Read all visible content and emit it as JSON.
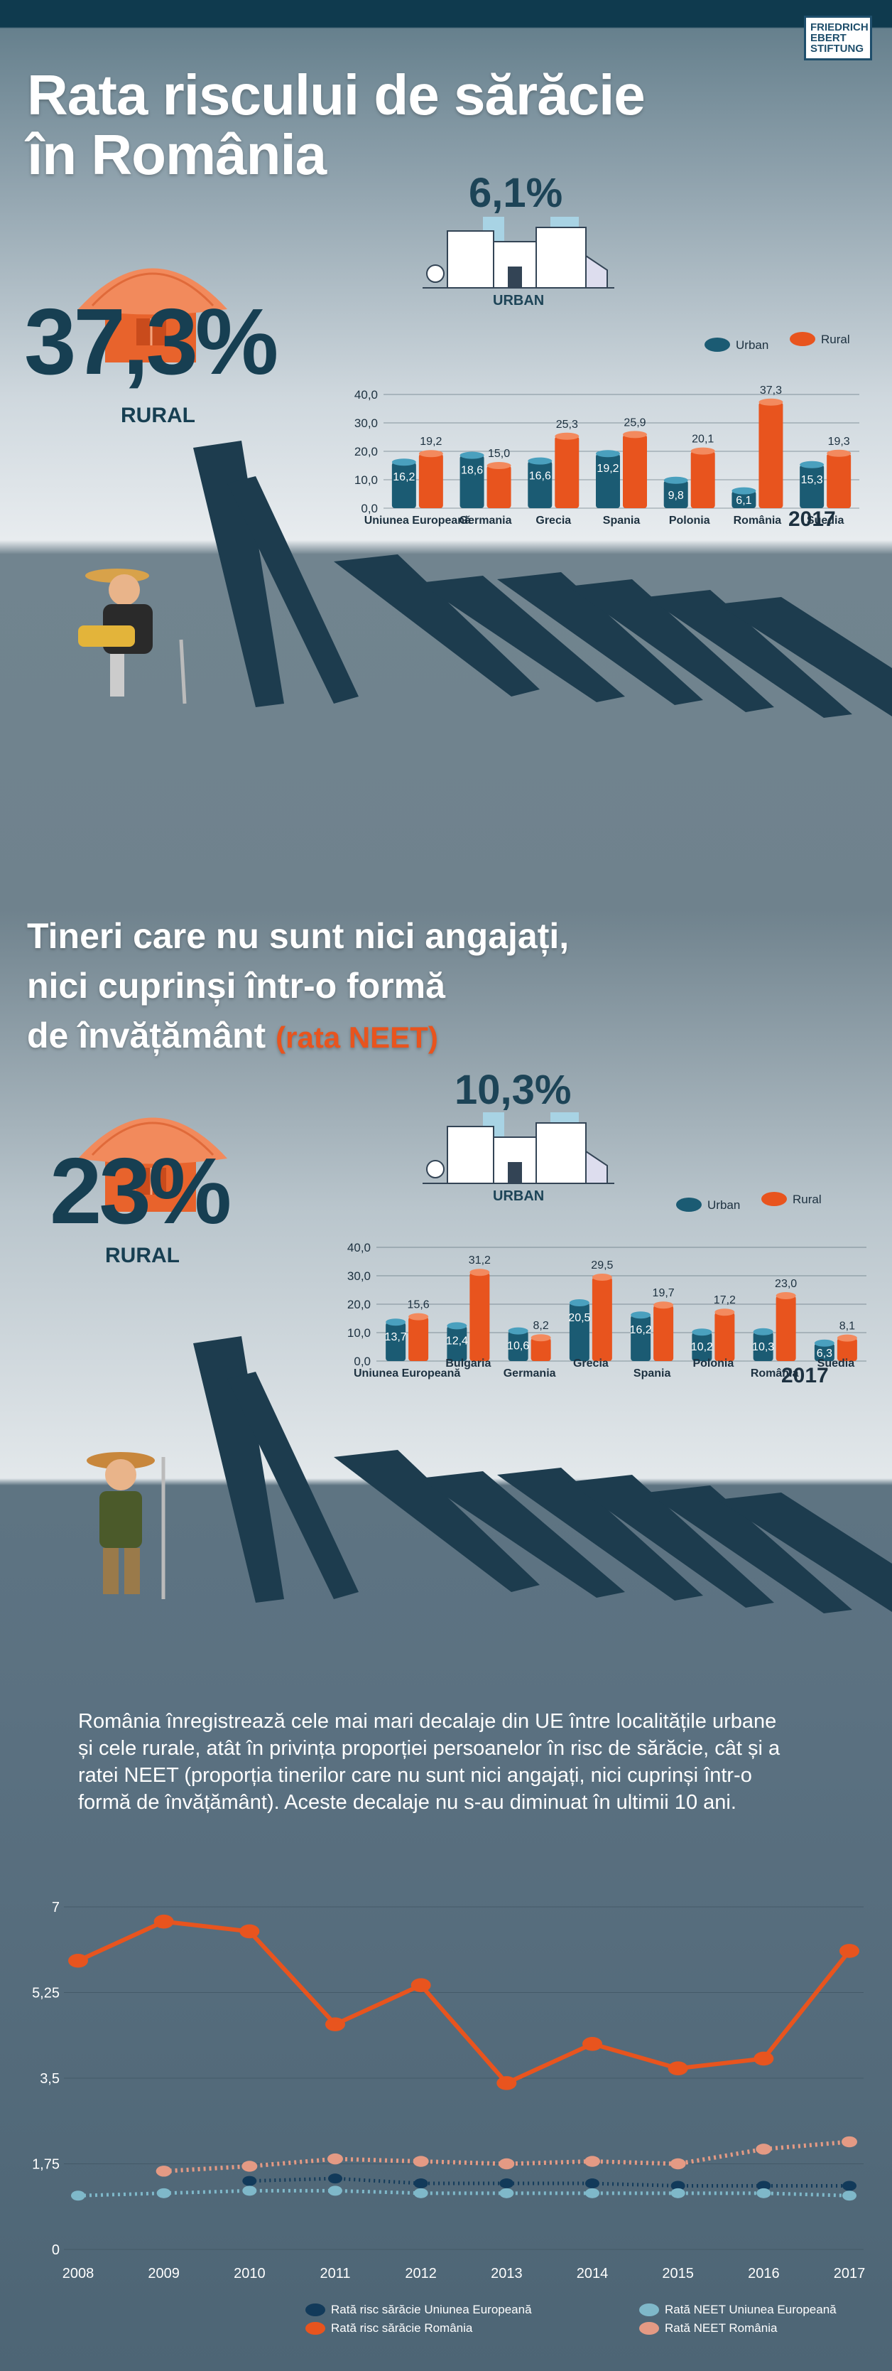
{
  "logo": {
    "line1": "FRIEDRICH",
    "line2": "EBERT",
    "line3": "STIFTUNG"
  },
  "section1": {
    "title_line1": "Rata riscului de sărăcie",
    "title_line2": "în România",
    "rural_value": "37,3%",
    "rural_label": "RURAL",
    "urban_value": "6,1%",
    "urban_label": "URBAN"
  },
  "section2": {
    "title_line1": "Tineri care nu sunt nici angajați,",
    "title_line2": "nici cuprinși într-o formă",
    "title_line3": "de învățământ",
    "title_highlight": "(rata NEET)",
    "rural_value": "23%",
    "rural_label": "RURAL",
    "urban_value": "10,3%",
    "urban_label": "URBAN"
  },
  "summary_text": "România înregistrează cele mai mari decalaje din UE între localitățile urbane și cele rurale, atât în privința proporției persoanelor în risc de sărăcie, cât și a ratei NEET (proporția tinerilor care nu sunt nici angajați, nici cuprinși într-o formă de învățământ). Aceste decalaje nu s-au diminuat în ultimii 10 ani.",
  "colors": {
    "urban": "#1b5b73",
    "rural": "#e8541e",
    "eu_neet": "#7fb8c9",
    "ro_neet": "#e49a84",
    "title_accent": "#e8541e"
  },
  "chart_data": [
    {
      "type": "bar",
      "year_label": "2017",
      "categories": [
        "Uniunea Europeană",
        "Germania",
        "Grecia",
        "Spania",
        "Polonia",
        "România",
        "Suedia"
      ],
      "series": [
        {
          "name": "Urban",
          "values": [
            16.2,
            18.6,
            16.6,
            19.2,
            9.8,
            6.1,
            15.3
          ]
        },
        {
          "name": "Rural",
          "values": [
            19.2,
            15.0,
            25.3,
            25.9,
            20.1,
            37.3,
            19.3
          ]
        }
      ],
      "value_labels": {
        "urban": [
          "16,2",
          "18,6",
          "16,6",
          "19,2",
          "9,8",
          "6,1",
          "15,3"
        ],
        "rural": [
          "19,2",
          "15,0",
          "25,3",
          "25,9",
          "20,1",
          "37,3",
          "19,3"
        ]
      },
      "yticks": [
        "0,0",
        "10,0",
        "20,0",
        "30,0",
        "40,0"
      ],
      "ylim": [
        0,
        40
      ],
      "legend": [
        "Urban",
        "Rural"
      ]
    },
    {
      "type": "bar",
      "year_label": "2017",
      "categories": [
        "Uniunea Europeană",
        "Bulgaria",
        "Germania",
        "Grecia",
        "Spania",
        "Polonia",
        "România",
        "Suedia"
      ],
      "series": [
        {
          "name": "Urban",
          "values": [
            13.7,
            12.4,
            10.6,
            20.5,
            16.2,
            10.2,
            10.3,
            6.3
          ]
        },
        {
          "name": "Rural",
          "values": [
            15.6,
            31.2,
            8.2,
            29.5,
            19.7,
            17.2,
            23.0,
            8.1
          ]
        }
      ],
      "value_labels": {
        "urban": [
          "13,7",
          "12,4",
          "10,6",
          "20,5",
          "16,2",
          "10,2",
          "10,3",
          "6,3"
        ],
        "rural": [
          "15,6",
          "31,2",
          "8,2",
          "29,5",
          "19,7",
          "17,2",
          "23,0",
          "8,1"
        ]
      },
      "yticks": [
        "0,0",
        "10,0",
        "20,0",
        "30,0",
        "40,0"
      ],
      "ylim": [
        0,
        40
      ],
      "legend": [
        "Urban",
        "Rural"
      ]
    },
    {
      "type": "line",
      "x": [
        "2008",
        "2009",
        "2010",
        "2011",
        "2012",
        "2013",
        "2014",
        "2015",
        "2016",
        "2017"
      ],
      "yticks": [
        "0",
        "1,75",
        "3,5",
        "5,25",
        "7"
      ],
      "ylim": [
        0,
        7
      ],
      "series": [
        {
          "name": "Rată risc sărăcie Uniunea Europeană",
          "values": [
            null,
            null,
            1.4,
            1.45,
            1.35,
            1.35,
            1.35,
            1.3,
            1.3,
            1.3
          ]
        },
        {
          "name": "Rată risc sărăcie România",
          "values": [
            5.9,
            6.7,
            6.5,
            4.6,
            5.4,
            3.4,
            4.2,
            3.7,
            3.9,
            6.1
          ]
        },
        {
          "name": "Rată NEET Uniunea Europeană",
          "values": [
            1.1,
            1.15,
            1.2,
            1.2,
            1.15,
            1.15,
            1.15,
            1.15,
            1.15,
            1.1
          ]
        },
        {
          "name": "Rată NEET România",
          "values": [
            null,
            1.6,
            1.7,
            1.85,
            1.8,
            1.75,
            1.8,
            1.75,
            2.05,
            2.2
          ]
        }
      ]
    }
  ]
}
